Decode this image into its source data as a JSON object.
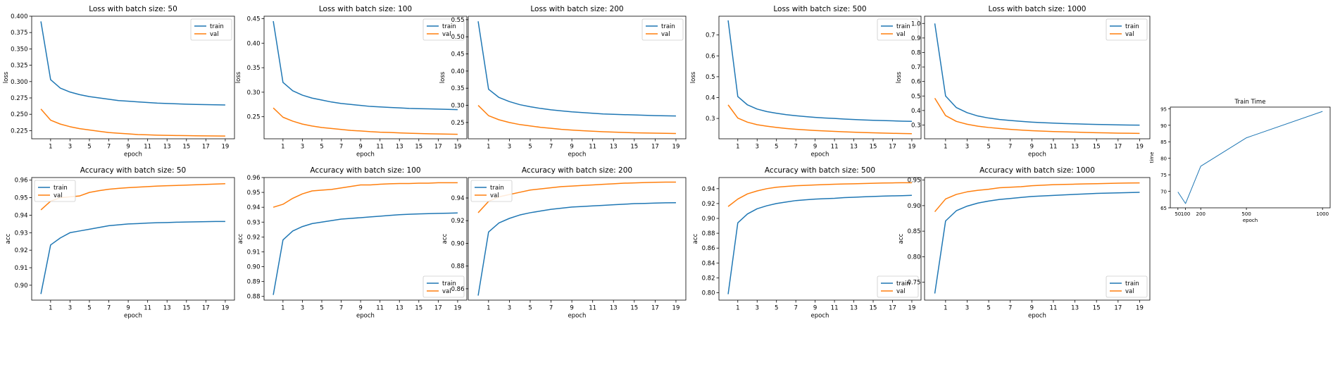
{
  "chart_data": [
    {
      "id": "loss50",
      "type": "line",
      "title": "Loss with batch size: 50",
      "xlabel": "epoch",
      "ylabel": "loss",
      "x": [
        0,
        1,
        2,
        3,
        4,
        5,
        6,
        7,
        8,
        9,
        10,
        11,
        12,
        13,
        14,
        15,
        16,
        17,
        18,
        19
      ],
      "ylim": [
        0.2125,
        0.4
      ],
      "yticks": [
        0.225,
        0.25,
        0.275,
        0.3,
        0.325,
        0.35,
        0.375,
        0.4
      ],
      "ytick_labels": [
        "0.225",
        "0.250",
        "0.275",
        "0.300",
        "0.325",
        "0.350",
        "0.375",
        "0.400"
      ],
      "xticks": [
        1,
        3,
        5,
        7,
        9,
        11,
        13,
        15,
        17,
        19
      ],
      "legend": "top-right",
      "series": [
        {
          "name": "train",
          "color": "#1f77b4",
          "values": [
            0.392,
            0.303,
            0.29,
            0.284,
            0.28,
            0.277,
            0.275,
            0.273,
            0.271,
            0.27,
            0.269,
            0.268,
            0.267,
            0.2665,
            0.266,
            0.2655,
            0.265,
            0.2648,
            0.2645,
            0.2642
          ]
        },
        {
          "name": "val",
          "color": "#ff7f0e",
          "values": [
            0.258,
            0.241,
            0.235,
            0.231,
            0.228,
            0.226,
            0.224,
            0.222,
            0.221,
            0.22,
            0.219,
            0.2185,
            0.218,
            0.2178,
            0.2175,
            0.2173,
            0.2171,
            0.217,
            0.2168,
            0.2167
          ]
        }
      ]
    },
    {
      "id": "loss100",
      "type": "line",
      "title": "Loss with batch size: 100",
      "xlabel": "epoch",
      "ylabel": "loss",
      "x": [
        0,
        1,
        2,
        3,
        4,
        5,
        6,
        7,
        8,
        9,
        10,
        11,
        12,
        13,
        14,
        15,
        16,
        17,
        18,
        19
      ],
      "ylim": [
        0.205,
        0.455
      ],
      "yticks": [
        0.25,
        0.3,
        0.35,
        0.4,
        0.45
      ],
      "ytick_labels": [
        "0.25",
        "0.30",
        "0.35",
        "0.40",
        "0.45"
      ],
      "xticks": [
        1,
        3,
        5,
        7,
        9,
        11,
        13,
        15,
        17,
        19
      ],
      "legend": "top-right",
      "series": [
        {
          "name": "train",
          "color": "#1f77b4",
          "values": [
            0.445,
            0.32,
            0.303,
            0.294,
            0.288,
            0.284,
            0.28,
            0.277,
            0.275,
            0.273,
            0.271,
            0.27,
            0.269,
            0.268,
            0.267,
            0.2665,
            0.266,
            0.2655,
            0.265,
            0.2645
          ]
        },
        {
          "name": "val",
          "color": "#ff7f0e",
          "values": [
            0.268,
            0.249,
            0.241,
            0.235,
            0.231,
            0.228,
            0.226,
            0.224,
            0.222,
            0.221,
            0.2195,
            0.2185,
            0.218,
            0.217,
            0.2163,
            0.2157,
            0.2152,
            0.2148,
            0.2145,
            0.2142
          ]
        }
      ]
    },
    {
      "id": "loss200",
      "type": "line",
      "title": "Loss with batch size: 200",
      "xlabel": "epoch",
      "ylabel": "loss",
      "x": [
        0,
        1,
        2,
        3,
        4,
        5,
        6,
        7,
        8,
        9,
        10,
        11,
        12,
        13,
        14,
        15,
        16,
        17,
        18,
        19
      ],
      "ylim": [
        0.2025,
        0.56
      ],
      "yticks": [
        0.25,
        0.3,
        0.35,
        0.4,
        0.45,
        0.5,
        0.55
      ],
      "ytick_labels": [
        "0.25",
        "0.30",
        "0.35",
        "0.40",
        "0.45",
        "0.50",
        "0.55"
      ],
      "xticks": [
        1,
        3,
        5,
        7,
        9,
        11,
        13,
        15,
        17,
        19
      ],
      "legend": "top-right",
      "series": [
        {
          "name": "train",
          "color": "#1f77b4",
          "values": [
            0.545,
            0.347,
            0.323,
            0.311,
            0.302,
            0.296,
            0.291,
            0.287,
            0.284,
            0.281,
            0.279,
            0.277,
            0.275,
            0.274,
            0.273,
            0.272,
            0.271,
            0.27,
            0.2695,
            0.269
          ]
        },
        {
          "name": "val",
          "color": "#ff7f0e",
          "values": [
            0.3,
            0.27,
            0.258,
            0.25,
            0.244,
            0.24,
            0.236,
            0.233,
            0.23,
            0.228,
            0.226,
            0.2245,
            0.223,
            0.222,
            0.221,
            0.22,
            0.2195,
            0.219,
            0.2185,
            0.218
          ]
        }
      ]
    },
    {
      "id": "loss500",
      "type": "line",
      "title": "Loss with batch size: 500",
      "xlabel": "epoch",
      "ylabel": "loss",
      "x": [
        0,
        1,
        2,
        3,
        4,
        5,
        6,
        7,
        8,
        9,
        10,
        11,
        12,
        13,
        14,
        15,
        16,
        17,
        18,
        19
      ],
      "ylim": [
        0.2025,
        0.79
      ],
      "yticks": [
        0.3,
        0.4,
        0.5,
        0.6,
        0.7
      ],
      "ytick_labels": [
        "0.3",
        "0.4",
        "0.5",
        "0.6",
        "0.7"
      ],
      "xticks": [
        1,
        3,
        5,
        7,
        9,
        11,
        13,
        15,
        17,
        19
      ],
      "legend": "top-right",
      "series": [
        {
          "name": "train",
          "color": "#1f77b4",
          "values": [
            0.77,
            0.405,
            0.365,
            0.345,
            0.333,
            0.325,
            0.318,
            0.313,
            0.309,
            0.305,
            0.302,
            0.3,
            0.297,
            0.295,
            0.293,
            0.291,
            0.29,
            0.2885,
            0.287,
            0.286
          ]
        },
        {
          "name": "val",
          "color": "#ff7f0e",
          "values": [
            0.365,
            0.302,
            0.282,
            0.27,
            0.263,
            0.257,
            0.252,
            0.248,
            0.245,
            0.242,
            0.24,
            0.238,
            0.236,
            0.234,
            0.2325,
            0.231,
            0.2298,
            0.2287,
            0.2277,
            0.2268
          ]
        }
      ]
    },
    {
      "id": "loss1000",
      "type": "line",
      "title": "Loss with batch size: 1000",
      "xlabel": "epoch",
      "ylabel": "loss",
      "x": [
        0,
        1,
        2,
        3,
        4,
        5,
        6,
        7,
        8,
        9,
        10,
        11,
        12,
        13,
        14,
        15,
        16,
        17,
        18,
        19
      ],
      "ylim": [
        0.205,
        1.05
      ],
      "yticks": [
        0.3,
        0.4,
        0.5,
        0.6,
        0.7,
        0.8,
        0.9,
        1.0
      ],
      "ytick_labels": [
        "0.3",
        "0.4",
        "0.5",
        "0.6",
        "0.7",
        "0.8",
        "0.9",
        "1.0"
      ],
      "xticks": [
        1,
        3,
        5,
        7,
        9,
        11,
        13,
        15,
        17,
        19
      ],
      "legend": "top-right",
      "series": [
        {
          "name": "train",
          "color": "#1f77b4",
          "values": [
            1.0,
            0.5,
            0.42,
            0.385,
            0.362,
            0.348,
            0.338,
            0.331,
            0.325,
            0.32,
            0.316,
            0.313,
            0.31,
            0.308,
            0.306,
            0.304,
            0.303,
            0.301,
            0.3,
            0.299
          ]
        },
        {
          "name": "val",
          "color": "#ff7f0e",
          "values": [
            0.485,
            0.365,
            0.325,
            0.305,
            0.292,
            0.283,
            0.276,
            0.27,
            0.265,
            0.261,
            0.258,
            0.255,
            0.253,
            0.251,
            0.249,
            0.247,
            0.2455,
            0.244,
            0.243,
            0.242
          ]
        }
      ]
    },
    {
      "id": "acc50",
      "type": "line",
      "title": "Accuracy with batch size: 50",
      "xlabel": "epoch",
      "ylabel": "acc",
      "x": [
        0,
        1,
        2,
        3,
        4,
        5,
        6,
        7,
        8,
        9,
        10,
        11,
        12,
        13,
        14,
        15,
        16,
        17,
        18,
        19
      ],
      "ylim": [
        0.8915,
        0.9615
      ],
      "yticks": [
        0.9,
        0.91,
        0.92,
        0.93,
        0.94,
        0.95,
        0.96
      ],
      "ytick_labels": [
        "0.90",
        "0.91",
        "0.92",
        "0.93",
        "0.94",
        "0.95",
        "0.96"
      ],
      "xticks": [
        1,
        3,
        5,
        7,
        9,
        11,
        13,
        15,
        17,
        19
      ],
      "legend": "top-left",
      "series": [
        {
          "name": "train",
          "color": "#1f77b4",
          "values": [
            0.895,
            0.923,
            0.927,
            0.93,
            0.931,
            0.932,
            0.933,
            0.934,
            0.9345,
            0.935,
            0.9352,
            0.9355,
            0.9357,
            0.9358,
            0.936,
            0.9361,
            0.9362,
            0.9363,
            0.9364,
            0.9364
          ]
        },
        {
          "name": "val",
          "color": "#ff7f0e",
          "values": [
            0.943,
            0.948,
            0.95,
            0.9505,
            0.951,
            0.953,
            0.954,
            0.9548,
            0.9553,
            0.9557,
            0.956,
            0.9563,
            0.9566,
            0.9568,
            0.957,
            0.9572,
            0.9574,
            0.9576,
            0.9578,
            0.958
          ]
        }
      ]
    },
    {
      "id": "acc100",
      "type": "line",
      "title": "Accuracy with batch size: 100",
      "xlabel": "epoch",
      "ylabel": "acc",
      "x": [
        0,
        1,
        2,
        3,
        4,
        5,
        6,
        7,
        8,
        9,
        10,
        11,
        12,
        13,
        14,
        15,
        16,
        17,
        18,
        19
      ],
      "ylim": [
        0.8775,
        0.96
      ],
      "yticks": [
        0.88,
        0.89,
        0.9,
        0.91,
        0.92,
        0.93,
        0.94,
        0.95,
        0.96
      ],
      "ytick_labels": [
        "0.88",
        "0.89",
        "0.90",
        "0.91",
        "0.92",
        "0.93",
        "0.94",
        "0.95",
        "0.96"
      ],
      "xticks": [
        1,
        3,
        5,
        7,
        9,
        11,
        13,
        15,
        17,
        19
      ],
      "legend": "bottom-right",
      "series": [
        {
          "name": "train",
          "color": "#1f77b4",
          "values": [
            0.881,
            0.918,
            0.924,
            0.927,
            0.929,
            0.93,
            0.931,
            0.932,
            0.9325,
            0.933,
            0.9335,
            0.934,
            0.9345,
            0.935,
            0.9353,
            0.9355,
            0.9357,
            0.9359,
            0.936,
            0.9362
          ]
        },
        {
          "name": "val",
          "color": "#ff7f0e",
          "values": [
            0.94,
            0.942,
            0.946,
            0.949,
            0.951,
            0.9515,
            0.952,
            0.953,
            0.954,
            0.955,
            0.955,
            0.9555,
            0.9558,
            0.956,
            0.956,
            0.9562,
            0.9562,
            0.9565,
            0.9565,
            0.9565
          ]
        }
      ]
    },
    {
      "id": "acc200",
      "type": "line",
      "title": "Accuracy with batch size: 200",
      "xlabel": "epoch",
      "ylabel": "acc",
      "x": [
        0,
        1,
        2,
        3,
        4,
        5,
        6,
        7,
        8,
        9,
        10,
        11,
        12,
        13,
        14,
        15,
        16,
        17,
        18,
        19
      ],
      "ylim": [
        0.85,
        0.958
      ],
      "yticks": [
        0.86,
        0.88,
        0.9,
        0.92,
        0.94
      ],
      "ytick_labels": [
        "0.86",
        "0.88",
        "0.90",
        "0.92",
        "0.94"
      ],
      "xticks": [
        1,
        3,
        5,
        7,
        9,
        11,
        13,
        15,
        17,
        19
      ],
      "legend": "top-left",
      "series": [
        {
          "name": "train",
          "color": "#1f77b4",
          "values": [
            0.854,
            0.91,
            0.918,
            0.922,
            0.925,
            0.927,
            0.9285,
            0.93,
            0.931,
            0.932,
            0.9325,
            0.933,
            0.9335,
            0.934,
            0.9345,
            0.935,
            0.9352,
            0.9355,
            0.9357,
            0.9358
          ]
        },
        {
          "name": "val",
          "color": "#ff7f0e",
          "values": [
            0.927,
            0.937,
            0.941,
            0.943,
            0.945,
            0.947,
            0.948,
            0.949,
            0.95,
            0.9505,
            0.951,
            0.9515,
            0.952,
            0.9525,
            0.953,
            0.9533,
            0.9536,
            0.9538,
            0.954,
            0.954
          ]
        }
      ]
    },
    {
      "id": "acc500",
      "type": "line",
      "title": "Accuracy with batch size: 500",
      "xlabel": "epoch",
      "ylabel": "acc",
      "x": [
        0,
        1,
        2,
        3,
        4,
        5,
        6,
        7,
        8,
        9,
        10,
        11,
        12,
        13,
        14,
        15,
        16,
        17,
        18,
        19
      ],
      "ylim": [
        0.79,
        0.955
      ],
      "yticks": [
        0.8,
        0.82,
        0.84,
        0.86,
        0.88,
        0.9,
        0.92,
        0.94
      ],
      "ytick_labels": [
        "0.80",
        "0.82",
        "0.84",
        "0.86",
        "0.88",
        "0.90",
        "0.92",
        "0.94"
      ],
      "xticks": [
        1,
        3,
        5,
        7,
        9,
        11,
        13,
        15,
        17,
        19
      ],
      "legend": "bottom-right",
      "series": [
        {
          "name": "train",
          "color": "#1f77b4",
          "values": [
            0.798,
            0.894,
            0.906,
            0.913,
            0.917,
            0.92,
            0.922,
            0.924,
            0.925,
            0.926,
            0.9265,
            0.927,
            0.928,
            0.9285,
            0.929,
            0.9295,
            0.93,
            0.9303,
            0.9306,
            0.931
          ]
        },
        {
          "name": "val",
          "color": "#ff7f0e",
          "values": [
            0.916,
            0.926,
            0.933,
            0.937,
            0.94,
            0.942,
            0.943,
            0.944,
            0.9445,
            0.945,
            0.9455,
            0.946,
            0.9463,
            0.9466,
            0.947,
            0.9473,
            0.9476,
            0.9478,
            0.948,
            0.948
          ]
        }
      ]
    },
    {
      "id": "acc1000",
      "type": "line",
      "title": "Accuracy with batch size: 1000",
      "xlabel": "epoch",
      "ylabel": "acc",
      "x": [
        0,
        1,
        2,
        3,
        4,
        5,
        6,
        7,
        8,
        9,
        10,
        11,
        12,
        13,
        14,
        15,
        16,
        17,
        18,
        19
      ],
      "ylim": [
        0.715,
        0.955
      ],
      "yticks": [
        0.75,
        0.8,
        0.85,
        0.9,
        0.95
      ],
      "ytick_labels": [
        "0.75",
        "0.80",
        "0.85",
        "0.90",
        "0.95"
      ],
      "xticks": [
        1,
        3,
        5,
        7,
        9,
        11,
        13,
        15,
        17,
        19
      ],
      "legend": "bottom-right",
      "series": [
        {
          "name": "train",
          "color": "#1f77b4",
          "values": [
            0.728,
            0.87,
            0.89,
            0.899,
            0.905,
            0.909,
            0.912,
            0.914,
            0.916,
            0.918,
            0.919,
            0.92,
            0.921,
            0.922,
            0.923,
            0.924,
            0.9245,
            0.925,
            0.9255,
            0.926
          ]
        },
        {
          "name": "val",
          "color": "#ff7f0e",
          "values": [
            0.888,
            0.913,
            0.922,
            0.927,
            0.93,
            0.932,
            0.935,
            0.936,
            0.937,
            0.939,
            0.94,
            0.941,
            0.9415,
            0.942,
            0.9425,
            0.943,
            0.9435,
            0.944,
            0.9443,
            0.9445
          ]
        }
      ]
    },
    {
      "id": "traintime",
      "type": "line",
      "title": "Train Time",
      "xlabel": "epoch",
      "ylabel": "time",
      "x": [
        50,
        100,
        200,
        500,
        1000
      ],
      "xlim": [
        0,
        1050
      ],
      "ylim": [
        65,
        95.5
      ],
      "yticks": [
        65,
        70,
        75,
        80,
        85,
        90,
        95
      ],
      "ytick_labels": [
        "65",
        "70",
        "75",
        "80",
        "85",
        "90",
        "95"
      ],
      "xticks": [
        50,
        100,
        200,
        500,
        1000
      ],
      "xtick_labels": [
        "50",
        "100",
        "200",
        "500",
        "1000"
      ],
      "legend": "none",
      "series": [
        {
          "color": "#1f77b4",
          "values": [
            69.8,
            66.3,
            77.6,
            86.2,
            94.2
          ]
        }
      ]
    }
  ]
}
